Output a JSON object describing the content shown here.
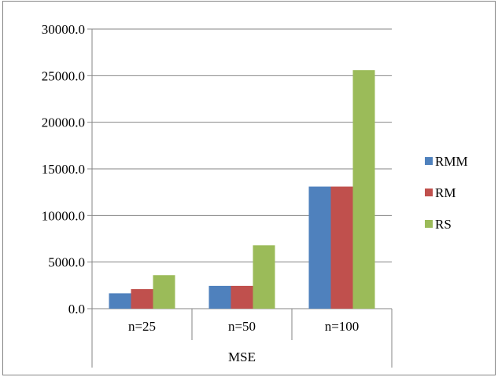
{
  "chart_data": {
    "type": "bar",
    "categories": [
      "n=25",
      "n=50",
      "n=100"
    ],
    "group_label": "MSE",
    "series": [
      {
        "name": "RMM",
        "color": "#4f81bd",
        "values": [
          1650,
          2450,
          13100
        ]
      },
      {
        "name": "RM",
        "color": "#c0504d",
        "values": [
          2100,
          2450,
          13100
        ]
      },
      {
        "name": "RS",
        "color": "#9bbb59",
        "values": [
          3600,
          6800,
          25600
        ]
      }
    ],
    "ylim": [
      0,
      30000
    ],
    "yticks": [
      "0.0",
      "5000.0",
      "10000.0",
      "15000.0",
      "20000.0",
      "25000.0",
      "30000.0"
    ],
    "grid": true,
    "legend_position": "right"
  }
}
